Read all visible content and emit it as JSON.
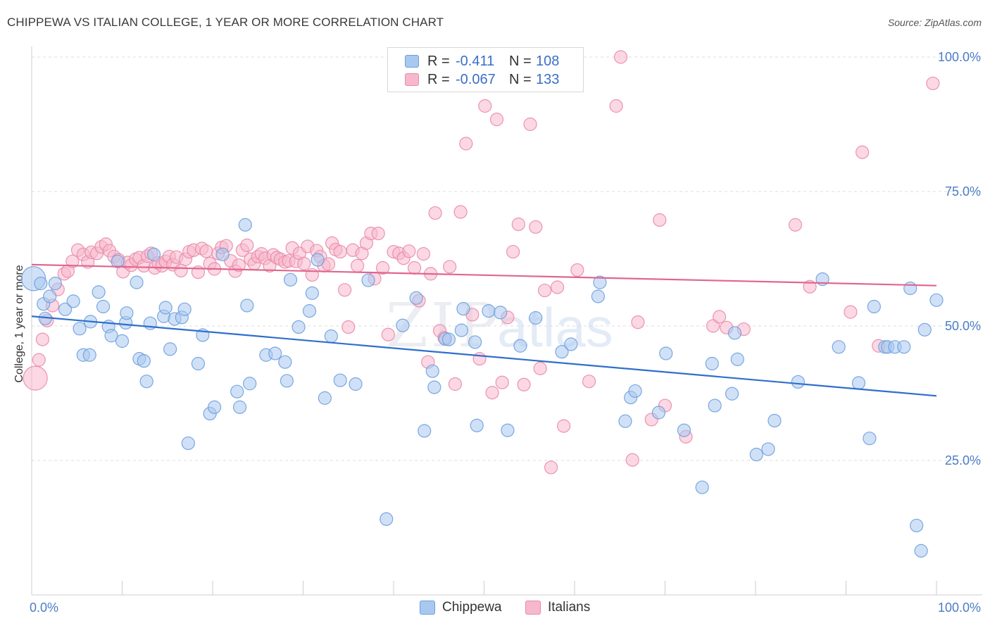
{
  "header": {
    "title": "CHIPPEWA VS ITALIAN COLLEGE, 1 YEAR OR MORE CORRELATION CHART",
    "source": "Source: ZipAtlas.com"
  },
  "legend": {
    "rows": [
      {
        "r_label": "R =",
        "r_value": "-0.411",
        "n_label": "N =",
        "n_value": "108"
      },
      {
        "r_label": "R =",
        "r_value": "-0.067",
        "n_label": "N =",
        "n_value": "133"
      }
    ]
  },
  "watermark": {
    "zip": "ZIP",
    "atlas": "atlas"
  },
  "colors": {
    "chippewa_fill": "#a9c8f0",
    "chippewa_stroke": "#6d9edd",
    "chippewa_line": "#2e6fcc",
    "italians_fill": "#f7b8cc",
    "italians_stroke": "#e98aa8",
    "italians_line": "#e0668f",
    "tick_label": "#4a7cc7",
    "grid": "#dddddd"
  },
  "chart_data": {
    "type": "scatter",
    "title": "CHIPPEWA VS ITALIAN COLLEGE, 1 YEAR OR MORE CORRELATION CHART",
    "xlabel": "",
    "ylabel": "College, 1 year or more",
    "xlim": [
      0,
      100
    ],
    "ylim": [
      0,
      103
    ],
    "x_tick_labels": [
      "0.0%",
      "100.0%"
    ],
    "y_ticks": [
      25,
      50,
      75,
      100
    ],
    "y_tick_labels": [
      "25.0%",
      "50.0%",
      "75.0%",
      "100.0%"
    ],
    "grid": "horizontal dashed",
    "legend_placement": "top-center",
    "series": [
      {
        "name": "Chippewa",
        "r": -0.411,
        "n": 108,
        "trend": {
          "x": [
            0,
            100
          ],
          "y": [
            51.8,
            37.0
          ]
        },
        "points": [
          [
            0.2,
            58.8
          ],
          [
            1.0,
            57.9
          ],
          [
            1.3,
            54.1
          ],
          [
            1.5,
            51.4
          ],
          [
            2.0,
            55.5
          ],
          [
            2.6,
            57.9
          ],
          [
            3.7,
            53.1
          ],
          [
            4.6,
            54.6
          ],
          [
            5.3,
            49.5
          ],
          [
            5.7,
            44.6
          ],
          [
            6.4,
            44.6
          ],
          [
            6.5,
            50.8
          ],
          [
            7.4,
            56.3
          ],
          [
            7.9,
            53.6
          ],
          [
            8.5,
            49.9
          ],
          [
            8.8,
            48.2
          ],
          [
            9.5,
            62.0
          ],
          [
            10.0,
            47.2
          ],
          [
            10.4,
            50.6
          ],
          [
            10.5,
            52.4
          ],
          [
            11.6,
            58.1
          ],
          [
            11.9,
            43.9
          ],
          [
            12.4,
            43.5
          ],
          [
            12.7,
            39.7
          ],
          [
            13.1,
            50.5
          ],
          [
            13.5,
            63.3
          ],
          [
            14.6,
            51.8
          ],
          [
            14.8,
            53.4
          ],
          [
            15.3,
            45.7
          ],
          [
            15.8,
            51.3
          ],
          [
            16.6,
            51.6
          ],
          [
            16.9,
            53.1
          ],
          [
            17.3,
            28.2
          ],
          [
            18.4,
            43.0
          ],
          [
            18.9,
            48.3
          ],
          [
            19.7,
            33.7
          ],
          [
            20.2,
            34.9
          ],
          [
            21.1,
            63.3
          ],
          [
            22.7,
            37.8
          ],
          [
            23.0,
            34.9
          ],
          [
            23.6,
            68.8
          ],
          [
            23.8,
            53.8
          ],
          [
            24.1,
            39.3
          ],
          [
            25.9,
            44.6
          ],
          [
            26.9,
            44.9
          ],
          [
            28.0,
            43.3
          ],
          [
            28.2,
            39.8
          ],
          [
            28.6,
            58.6
          ],
          [
            29.5,
            49.8
          ],
          [
            30.7,
            52.8
          ],
          [
            31.0,
            56.1
          ],
          [
            31.6,
            62.3
          ],
          [
            32.4,
            36.6
          ],
          [
            33.1,
            48.1
          ],
          [
            34.1,
            39.9
          ],
          [
            35.8,
            39.2
          ],
          [
            37.2,
            58.5
          ],
          [
            39.2,
            14.1
          ],
          [
            41.0,
            50.1
          ],
          [
            42.5,
            55.2
          ],
          [
            43.4,
            30.5
          ],
          [
            44.3,
            41.6
          ],
          [
            44.5,
            38.6
          ],
          [
            45.7,
            47.6
          ],
          [
            46.1,
            47.5
          ],
          [
            47.5,
            49.2
          ],
          [
            47.7,
            53.2
          ],
          [
            49.2,
            31.5
          ],
          [
            49.0,
            47.0
          ],
          [
            50.5,
            52.8
          ],
          [
            51.8,
            52.5
          ],
          [
            52.6,
            30.6
          ],
          [
            54.0,
            46.3
          ],
          [
            55.7,
            51.5
          ],
          [
            58.6,
            45.2
          ],
          [
            59.6,
            46.6
          ],
          [
            62.6,
            55.5
          ],
          [
            62.8,
            58.1
          ],
          [
            65.6,
            32.3
          ],
          [
            66.2,
            36.7
          ],
          [
            66.7,
            37.9
          ],
          [
            69.3,
            33.9
          ],
          [
            70.1,
            44.9
          ],
          [
            72.1,
            30.6
          ],
          [
            74.1,
            20.0
          ],
          [
            75.2,
            43.0
          ],
          [
            75.5,
            35.2
          ],
          [
            77.4,
            37.4
          ],
          [
            77.7,
            48.7
          ],
          [
            78.0,
            43.8
          ],
          [
            80.1,
            26.1
          ],
          [
            81.4,
            27.1
          ],
          [
            82.1,
            32.4
          ],
          [
            84.7,
            39.6
          ],
          [
            87.4,
            58.7
          ],
          [
            89.2,
            46.1
          ],
          [
            91.4,
            39.4
          ],
          [
            92.6,
            29.1
          ],
          [
            93.1,
            53.6
          ],
          [
            94.3,
            46.1
          ],
          [
            94.6,
            46.1
          ],
          [
            95.4,
            46.1
          ],
          [
            96.4,
            46.1
          ],
          [
            97.1,
            57.0
          ],
          [
            97.8,
            12.9
          ],
          [
            98.3,
            8.2
          ],
          [
            98.7,
            49.3
          ],
          [
            100.0,
            54.8
          ]
        ]
      },
      {
        "name": "Italians",
        "r": -0.067,
        "n": 133,
        "trend": {
          "x": [
            0,
            100
          ],
          "y": [
            61.4,
            57.5
          ]
        },
        "points": [
          [
            0.4,
            40.3
          ],
          [
            0.8,
            43.7
          ],
          [
            1.2,
            47.5
          ],
          [
            1.7,
            51.0
          ],
          [
            2.3,
            53.8
          ],
          [
            2.9,
            56.8
          ],
          [
            3.6,
            59.7
          ],
          [
            4.0,
            60.2
          ],
          [
            4.5,
            62.0
          ],
          [
            5.1,
            64.1
          ],
          [
            5.7,
            63.3
          ],
          [
            6.2,
            61.9
          ],
          [
            6.6,
            63.7
          ],
          [
            7.2,
            63.5
          ],
          [
            7.7,
            64.7
          ],
          [
            8.2,
            65.2
          ],
          [
            8.6,
            64.0
          ],
          [
            9.1,
            62.9
          ],
          [
            9.6,
            62.3
          ],
          [
            10.1,
            60.1
          ],
          [
            10.6,
            61.8
          ],
          [
            11.0,
            61.3
          ],
          [
            11.5,
            62.4
          ],
          [
            11.9,
            62.7
          ],
          [
            12.4,
            61.2
          ],
          [
            12.8,
            63.0
          ],
          [
            13.2,
            63.5
          ],
          [
            13.6,
            60.8
          ],
          [
            14.0,
            61.7
          ],
          [
            14.4,
            61.2
          ],
          [
            14.8,
            62.0
          ],
          [
            15.2,
            62.9
          ],
          [
            15.6,
            61.4
          ],
          [
            16.0,
            62.8
          ],
          [
            16.5,
            60.3
          ],
          [
            17.0,
            62.4
          ],
          [
            17.4,
            63.8
          ],
          [
            17.9,
            64.1
          ],
          [
            18.4,
            60.0
          ],
          [
            18.8,
            64.4
          ],
          [
            19.3,
            63.9
          ],
          [
            19.7,
            61.6
          ],
          [
            20.2,
            60.6
          ],
          [
            20.6,
            63.5
          ],
          [
            21.0,
            64.6
          ],
          [
            21.5,
            64.9
          ],
          [
            22.0,
            62.1
          ],
          [
            22.5,
            60.2
          ],
          [
            22.9,
            61.3
          ],
          [
            23.3,
            64.1
          ],
          [
            23.8,
            65.0
          ],
          [
            24.2,
            62.4
          ],
          [
            24.6,
            61.6
          ],
          [
            25.0,
            62.9
          ],
          [
            25.4,
            63.4
          ],
          [
            25.8,
            62.6
          ],
          [
            26.3,
            61.2
          ],
          [
            26.7,
            63.2
          ],
          [
            27.1,
            62.7
          ],
          [
            27.5,
            62.4
          ],
          [
            28.0,
            61.9
          ],
          [
            28.4,
            62.1
          ],
          [
            28.8,
            64.5
          ],
          [
            29.2,
            62.0
          ],
          [
            29.6,
            63.5
          ],
          [
            30.1,
            61.6
          ],
          [
            30.5,
            64.8
          ],
          [
            31.0,
            59.5
          ],
          [
            31.5,
            64.0
          ],
          [
            31.9,
            62.9
          ],
          [
            32.3,
            61.2
          ],
          [
            32.8,
            61.5
          ],
          [
            33.2,
            65.4
          ],
          [
            33.6,
            64.2
          ],
          [
            34.1,
            63.8
          ],
          [
            34.6,
            56.7
          ],
          [
            35.0,
            49.8
          ],
          [
            35.5,
            64.1
          ],
          [
            36.0,
            61.2
          ],
          [
            36.5,
            63.5
          ],
          [
            37.0,
            65.4
          ],
          [
            37.5,
            67.2
          ],
          [
            37.9,
            58.8
          ],
          [
            38.3,
            67.2
          ],
          [
            38.8,
            60.8
          ],
          [
            39.4,
            48.4
          ],
          [
            40.0,
            63.8
          ],
          [
            40.6,
            63.5
          ],
          [
            41.1,
            62.6
          ],
          [
            41.7,
            63.9
          ],
          [
            42.3,
            60.8
          ],
          [
            42.8,
            54.7
          ],
          [
            43.3,
            63.4
          ],
          [
            43.8,
            43.3
          ],
          [
            44.1,
            59.7
          ],
          [
            44.6,
            71.0
          ],
          [
            45.1,
            49.1
          ],
          [
            45.6,
            47.8
          ],
          [
            46.2,
            61.0
          ],
          [
            46.8,
            39.2
          ],
          [
            47.4,
            71.2
          ],
          [
            48.0,
            83.9
          ],
          [
            48.7,
            52.1
          ],
          [
            49.5,
            43.9
          ],
          [
            50.1,
            90.9
          ],
          [
            50.9,
            37.6
          ],
          [
            51.4,
            88.4
          ],
          [
            52.0,
            39.5
          ],
          [
            52.6,
            51.6
          ],
          [
            53.2,
            63.8
          ],
          [
            53.8,
            68.9
          ],
          [
            54.4,
            39.1
          ],
          [
            55.1,
            87.5
          ],
          [
            55.7,
            68.4
          ],
          [
            56.2,
            42.1
          ],
          [
            56.7,
            56.6
          ],
          [
            57.4,
            23.7
          ],
          [
            58.1,
            57.2
          ],
          [
            58.8,
            31.4
          ],
          [
            60.3,
            60.4
          ],
          [
            61.6,
            39.7
          ],
          [
            64.6,
            90.9
          ],
          [
            65.1,
            100.0
          ],
          [
            66.4,
            25.1
          ],
          [
            67.0,
            50.7
          ],
          [
            68.5,
            32.6
          ],
          [
            69.4,
            69.7
          ],
          [
            70.0,
            35.2
          ],
          [
            72.3,
            29.4
          ],
          [
            75.3,
            50.0
          ],
          [
            76.0,
            51.7
          ],
          [
            76.8,
            49.7
          ],
          [
            78.7,
            49.4
          ],
          [
            84.4,
            68.8
          ],
          [
            90.5,
            52.6
          ],
          [
            91.8,
            82.3
          ],
          [
            93.6,
            46.3
          ],
          [
            99.6,
            95.1
          ],
          [
            86.0,
            57.3
          ]
        ]
      }
    ]
  },
  "bottom_legend": {
    "items": [
      "Chippewa",
      "Italians"
    ]
  }
}
